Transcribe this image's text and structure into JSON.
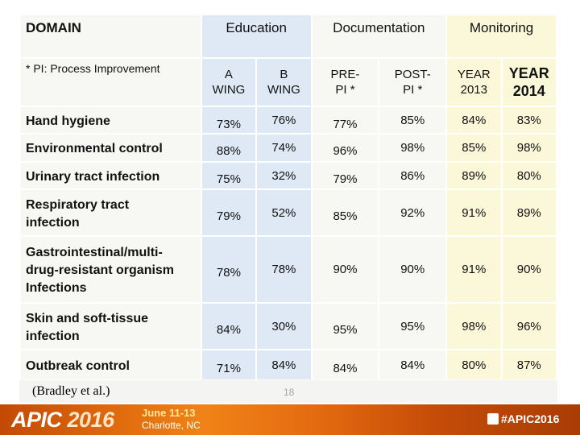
{
  "header": {
    "domain": "DOMAIN",
    "groups": {
      "education": "Education",
      "documentation": "Documentation",
      "monitoring": "Monitoring"
    }
  },
  "subheader": {
    "note": "* PI: Process Improvement",
    "a_wing": "A\nWING",
    "b_wing": "B\nWING",
    "pre_pi": "PRE-\nPI *",
    "post_pi": "POST-\nPI *",
    "year_2013": "YEAR\n2013",
    "year_2014": "YEAR\n2014"
  },
  "rows": [
    {
      "domain": "Hand hygiene",
      "values": [
        "73%",
        "76%",
        "77%",
        "85%",
        "84%",
        "83%"
      ]
    },
    {
      "domain": "Environmental control",
      "values": [
        "88%",
        "74%",
        "96%",
        "98%",
        "85%",
        "98%"
      ]
    },
    {
      "domain": "Urinary tract infection",
      "values": [
        "75%",
        "32%",
        "79%",
        "86%",
        "89%",
        "80%"
      ]
    },
    {
      "domain": "Respiratory tract\ninfection",
      "values": [
        "79%",
        "52%",
        "85%",
        "92%",
        "91%",
        "89%"
      ]
    },
    {
      "domain": "Gastrointestinal/multi-\ndrug-resistant organism\nInfections",
      "values": [
        "78%",
        "78%",
        "90%",
        "90%",
        "91%",
        "90%"
      ]
    },
    {
      "domain": "Skin and soft-tissue\ninfection",
      "values": [
        "84%",
        "30%",
        "95%",
        "95%",
        "98%",
        "96%"
      ]
    },
    {
      "domain": "Outbreak control",
      "values": [
        "71%",
        "84%",
        "84%",
        "84%",
        "80%",
        "87%"
      ]
    }
  ],
  "caption": "(Bradley et al.)",
  "page_number": "18",
  "footer": {
    "logo_main": "APIC",
    "logo_year": "2016",
    "date": "June 11-13",
    "city": "Charlotte, NC",
    "hashtag": "#APIC2016"
  },
  "colors": {
    "education_bg": "#dfe9f5",
    "documentation_bg": "#f7f7f4",
    "monitoring_bg": "#fbf8d9",
    "footer_orange": "#e46a10"
  }
}
